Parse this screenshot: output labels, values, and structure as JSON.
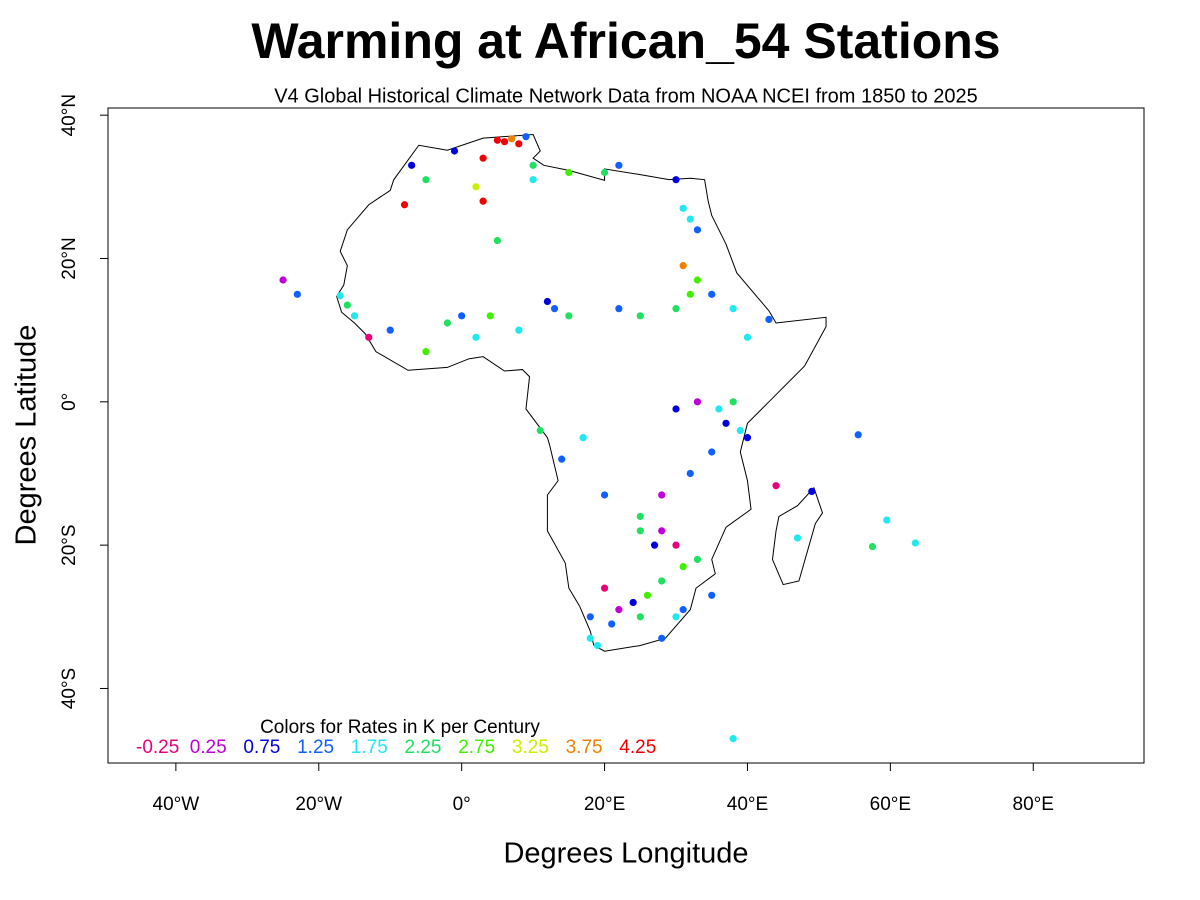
{
  "chart_data": {
    "type": "scatter",
    "title": "Warming at African_54 Stations",
    "subtitle": "V4 Global Historical Climate Network Data from NOAA NCEI from 1850 to 2025",
    "x_label": "Degrees Longitude",
    "y_label": "Degrees Latitude",
    "xlim": [
      -49.5,
      95.5
    ],
    "ylim": [
      -50.4,
      41
    ],
    "xticks": [
      {
        "value": -40,
        "label": "40°W"
      },
      {
        "value": -20,
        "label": "20°W"
      },
      {
        "value": 0,
        "label": "0°"
      },
      {
        "value": 20,
        "label": "20°E"
      },
      {
        "value": 40,
        "label": "40°E"
      },
      {
        "value": 60,
        "label": "60°E"
      },
      {
        "value": 80,
        "label": "80°E"
      }
    ],
    "yticks": [
      {
        "value": 40,
        "label": "40°N"
      },
      {
        "value": 20,
        "label": "20°N"
      },
      {
        "value": 0,
        "label": "0°"
      },
      {
        "value": -20,
        "label": "20°S"
      },
      {
        "value": -40,
        "label": "40°S"
      }
    ],
    "legend": {
      "title": "Colors for Rates in K per Century",
      "levels": [
        -0.25,
        0.25,
        0.75,
        1.25,
        1.75,
        2.25,
        2.75,
        3.25,
        3.75,
        4.25
      ],
      "colors": [
        "#e8007a",
        "#c000d8",
        "#0000e0",
        "#1060ff",
        "#20e8f0",
        "#20e060",
        "#40f000",
        "#c8f000",
        "#f08000",
        "#f00000"
      ]
    },
    "x": [
      5,
      6,
      7,
      8,
      9,
      3,
      10,
      -1,
      2,
      -5,
      -8,
      -7,
      3,
      5,
      10,
      15,
      20,
      22,
      30,
      31,
      32,
      33,
      31,
      33,
      -17,
      -16,
      -15,
      -13,
      -10,
      -5,
      -2,
      0,
      2,
      4,
      8,
      12,
      13,
      15,
      22,
      25,
      30,
      32,
      35,
      38,
      40,
      -25,
      -23,
      30,
      33,
      36,
      37,
      38,
      39,
      40,
      35,
      32,
      28,
      25,
      30,
      20,
      18,
      22,
      25,
      28,
      30,
      31,
      33,
      35,
      18,
      19,
      21,
      24,
      26,
      28,
      31,
      28,
      27,
      25,
      20,
      47,
      49,
      44,
      55.5,
      57.5,
      59.5,
      63.5,
      38,
      43,
      17,
      14,
      11
    ],
    "y": [
      36.5,
      36.3,
      36.7,
      36,
      37,
      34,
      33,
      35,
      30,
      31,
      27.5,
      33,
      28,
      22.5,
      31,
      32,
      32,
      33,
      31,
      27,
      25.5,
      24,
      19,
      17,
      14.8,
      13.5,
      12,
      9,
      10,
      7,
      11,
      12,
      9,
      12,
      10,
      14,
      13,
      12,
      13,
      12,
      13,
      15,
      15,
      13,
      9,
      17,
      15,
      -1,
      0,
      -1,
      -3,
      0,
      -4,
      -5,
      -7,
      -10,
      -13,
      -18,
      -20,
      -26,
      -30,
      -29,
      -30,
      -33,
      -30,
      -23,
      -22,
      -27,
      -33,
      -34,
      -31,
      -28,
      -27,
      -25,
      -29,
      -18,
      -20,
      -16,
      -13,
      -19,
      -12.5,
      -11.7,
      -4.6,
      -20.2,
      -16.5,
      -19.7,
      -47,
      11.5,
      -5,
      -8,
      -4
    ],
    "values": [
      4.25,
      4.2,
      3.8,
      4.3,
      1.3,
      4.2,
      2.2,
      0.8,
      3.25,
      2.3,
      4.2,
      0.75,
      4.3,
      2.2,
      1.8,
      2.8,
      2.3,
      1.25,
      0.75,
      1.75,
      1.8,
      1.2,
      3.7,
      2.7,
      1.75,
      2.2,
      1.7,
      -0.3,
      1.3,
      2.8,
      2.2,
      1.3,
      1.75,
      2.75,
      1.7,
      0.8,
      1.25,
      2.3,
      1.2,
      2.25,
      2.2,
      2.7,
      1.3,
      1.8,
      1.75,
      0.25,
      1.25,
      0.75,
      0.3,
      1.7,
      0.75,
      2.2,
      1.8,
      0.75,
      1.25,
      1.3,
      0.25,
      2.25,
      -0.2,
      -0.2,
      1.25,
      0.25,
      2.2,
      1.2,
      1.7,
      2.75,
      2.3,
      1.25,
      1.8,
      1.7,
      1.3,
      0.75,
      2.75,
      2.2,
      1.2,
      0.25,
      0.75,
      2.3,
      1.25,
      1.75,
      0.75,
      -0.25,
      1.3,
      2.3,
      1.75,
      1.75,
      1.7,
      1.25,
      1.75,
      1.25,
      2.25
    ]
  }
}
